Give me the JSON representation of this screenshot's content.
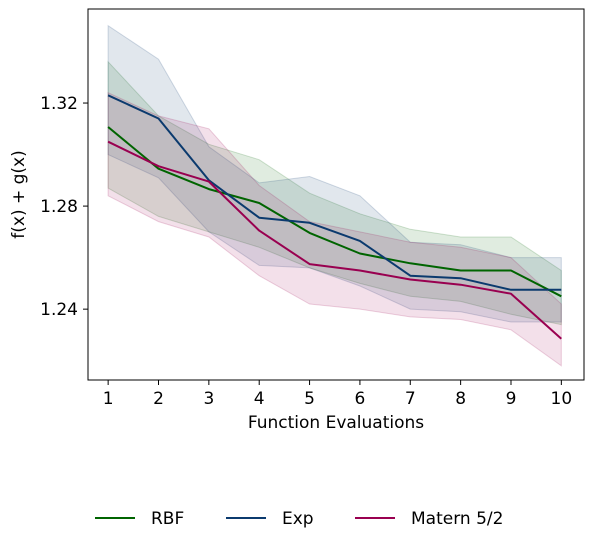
{
  "chart_data": {
    "type": "line",
    "xlabel": "Function Evaluations",
    "ylabel": "f(x) + g(x)",
    "x": [
      1,
      2,
      3,
      4,
      5,
      6,
      7,
      8,
      9,
      10
    ],
    "xticks": [
      "1",
      "2",
      "3",
      "4",
      "5",
      "6",
      "7",
      "8",
      "9",
      "10"
    ],
    "yticks": [
      1.24,
      1.28,
      1.32
    ],
    "ytick_labels": [
      "1.24",
      "1.28",
      "1.32"
    ],
    "xlim": [
      0.6,
      10.45
    ],
    "ylim": [
      1.2125,
      1.3565
    ],
    "grid": false,
    "legend_placement": "bottom-center",
    "series": [
      {
        "name": "RBF",
        "color": "#006400",
        "values": [
          1.3107,
          1.2945,
          1.2866,
          1.2812,
          1.2696,
          1.2616,
          1.2578,
          1.255,
          1.255,
          1.245
        ],
        "lower": [
          1.287,
          1.276,
          1.27,
          1.264,
          1.256,
          1.25,
          1.245,
          1.243,
          1.238,
          1.234
        ],
        "upper": [
          1.336,
          1.315,
          1.304,
          1.298,
          1.285,
          1.277,
          1.271,
          1.268,
          1.268,
          1.255
        ]
      },
      {
        "name": "Exp",
        "color": "#0B3A6E",
        "values": [
          1.323,
          1.314,
          1.29,
          1.2755,
          1.2735,
          1.2665,
          1.253,
          1.252,
          1.2475,
          1.2475
        ],
        "lower": [
          1.3,
          1.291,
          1.27,
          1.257,
          1.256,
          1.249,
          1.24,
          1.239,
          1.235,
          1.235
        ],
        "upper": [
          1.35,
          1.337,
          1.303,
          1.289,
          1.2915,
          1.284,
          1.266,
          1.265,
          1.26,
          1.26
        ]
      },
      {
        "name": "Matern 5/2",
        "color": "#990050",
        "values": [
          1.305,
          1.2955,
          1.2895,
          1.2705,
          1.2575,
          1.255,
          1.2515,
          1.2495,
          1.246,
          1.2285
        ],
        "lower": [
          1.284,
          1.274,
          1.268,
          1.253,
          1.242,
          1.24,
          1.237,
          1.236,
          1.232,
          1.218
        ],
        "upper": [
          1.324,
          1.315,
          1.31,
          1.288,
          1.274,
          1.27,
          1.266,
          1.264,
          1.26,
          1.242
        ]
      }
    ]
  }
}
